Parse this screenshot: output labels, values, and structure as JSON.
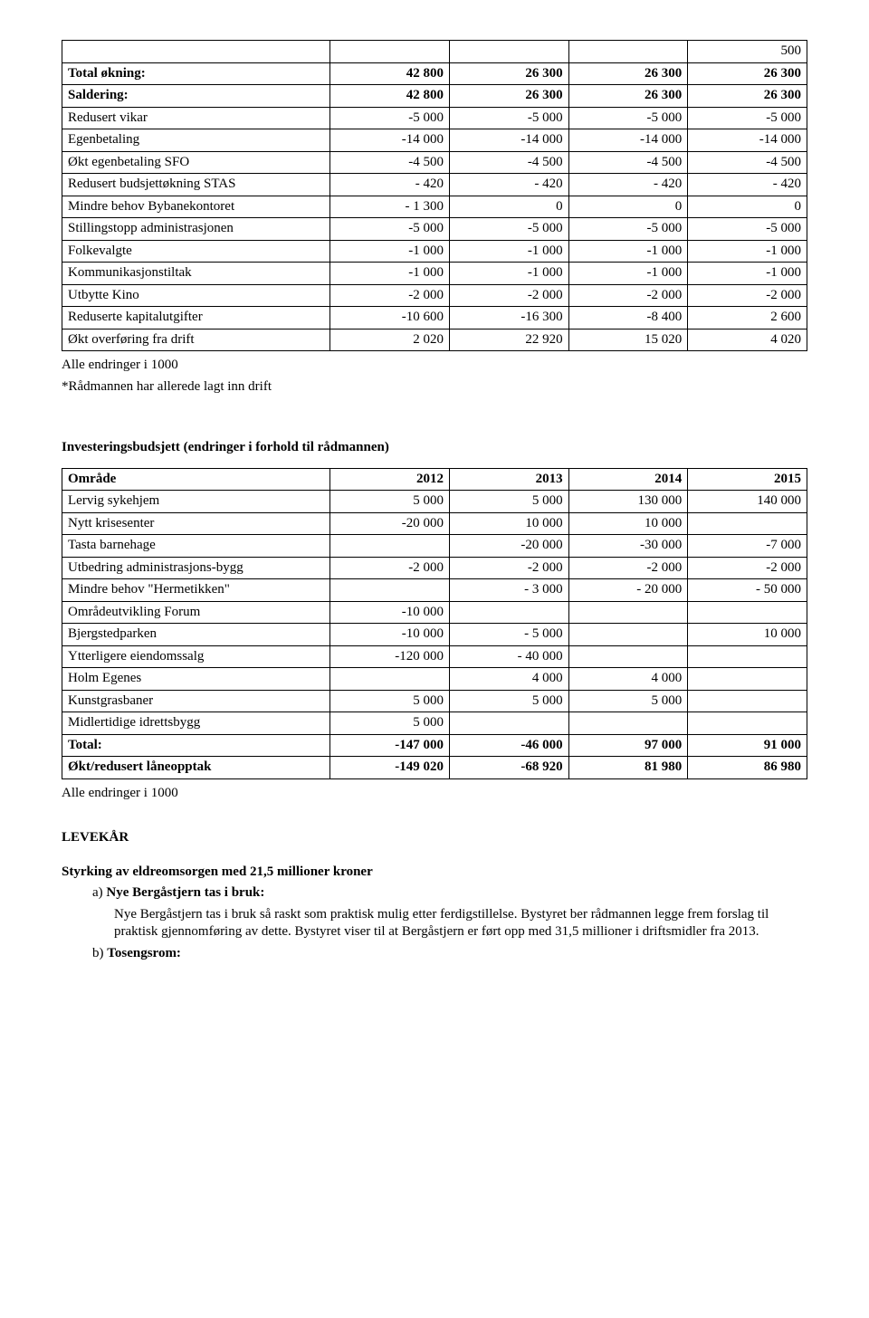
{
  "table1": {
    "headerBlankRight": "500",
    "rows": [
      {
        "label": "Total økning:",
        "bold": true,
        "c": [
          "42 800",
          "26 300",
          "26 300",
          "26 300"
        ]
      },
      {
        "label": "Saldering:",
        "bold": true,
        "c": [
          "42 800",
          "26 300",
          "26 300",
          "26 300"
        ]
      },
      {
        "label": "Redusert vikar",
        "c": [
          "-5 000",
          "-5 000",
          "-5 000",
          "-5 000"
        ]
      },
      {
        "label": "Egenbetaling",
        "c": [
          "-14 000",
          "-14 000",
          "-14 000",
          "-14 000"
        ]
      },
      {
        "label": "Økt egenbetaling SFO",
        "c": [
          "-4 500",
          "-4 500",
          "-4 500",
          "-4 500"
        ]
      },
      {
        "label": "Redusert budsjettøkning STAS",
        "c": [
          "- 420",
          "- 420",
          "- 420",
          "- 420"
        ]
      },
      {
        "label": "Mindre behov Bybanekontoret",
        "c": [
          "- 1 300",
          "0",
          "0",
          "0"
        ]
      },
      {
        "label": "Stillingstopp administrasjonen",
        "c": [
          "-5 000",
          "-5 000",
          "-5 000",
          "-5 000"
        ]
      },
      {
        "label": "Folkevalgte",
        "c": [
          "-1 000",
          "-1 000",
          "-1 000",
          "-1 000"
        ]
      },
      {
        "label": "Kommunikasjonstiltak",
        "c": [
          "-1 000",
          "-1 000",
          "-1 000",
          "-1 000"
        ]
      },
      {
        "label": "Utbytte Kino",
        "c": [
          "-2 000",
          "-2 000",
          "-2 000",
          "-2 000"
        ]
      },
      {
        "label": "Reduserte kapitalutgifter",
        "c": [
          "-10 600",
          "-16 300",
          "-8 400",
          "2 600"
        ]
      },
      {
        "label": "Økt overføring fra drift",
        "c": [
          "2 020",
          "22 920",
          "15 020",
          "4 020"
        ]
      }
    ]
  },
  "note1_line1": "Alle endringer i 1000",
  "note1_line2": "*Rådmannen har allerede lagt inn drift",
  "invest_title": "Investeringsbudsjett (endringer i forhold til rådmannen)",
  "table2": {
    "header": [
      "Område",
      "2012",
      "2013",
      "2014",
      "2015"
    ],
    "rows": [
      {
        "label": "Lervig sykehjem",
        "c": [
          "5 000",
          "5 000",
          "130 000",
          "140 000"
        ]
      },
      {
        "label": "Nytt krisesenter",
        "c": [
          "-20 000",
          "10 000",
          "10 000",
          ""
        ]
      },
      {
        "label": "Tasta barnehage",
        "c": [
          "",
          "-20 000",
          "-30 000",
          "-7 000"
        ]
      },
      {
        "label": "Utbedring administrasjons-bygg",
        "c": [
          "-2 000",
          "-2 000",
          "-2 000",
          "-2 000"
        ]
      },
      {
        "label": "Mindre behov \"Hermetikken\"",
        "c": [
          "",
          "- 3 000",
          "- 20 000",
          "- 50 000"
        ]
      },
      {
        "label": "Områdeutvikling Forum",
        "c": [
          "-10 000",
          "",
          "",
          ""
        ]
      },
      {
        "label": "Bjergstedparken",
        "c": [
          "-10 000",
          "- 5 000",
          "",
          "10 000"
        ]
      },
      {
        "label": "Ytterligere eiendomssalg",
        "c": [
          "-120 000",
          "- 40 000",
          "",
          ""
        ]
      },
      {
        "label": "Holm Egenes",
        "c": [
          "",
          "4 000",
          "4 000",
          ""
        ]
      },
      {
        "label": "Kunstgrasbaner",
        "c": [
          "5 000",
          "5 000",
          "5 000",
          ""
        ]
      },
      {
        "label": "Midlertidige idrettsbygg",
        "c": [
          "5 000",
          "",
          "",
          ""
        ]
      },
      {
        "label": "Total:",
        "bold": true,
        "c": [
          "-147 000",
          "-46 000",
          "97 000",
          "91 000"
        ]
      },
      {
        "label": "Økt/redusert låneopptak",
        "bold": true,
        "c": [
          "-149 020",
          "-68 920",
          "81 980",
          "86 980"
        ]
      }
    ]
  },
  "note2": "Alle endringer i 1000",
  "levekar": "LEVEKÅR",
  "styrking": "Styrking av eldreomsorgen med 21,5 millioner kroner",
  "a_label": "a)",
  "a_title": "Nye Bergåstjern tas i bruk:",
  "a_body": "Nye Bergåstjern tas i bruk så raskt som praktisk mulig etter ferdigstillelse. Bystyret ber rådmannen legge frem forslag til praktisk gjennomføring av dette.  Bystyret viser til at Bergåstjern er ført opp med 31,5 millioner i driftsmidler fra 2013.",
  "b_label": "b)",
  "b_title": "Tosengsrom:"
}
